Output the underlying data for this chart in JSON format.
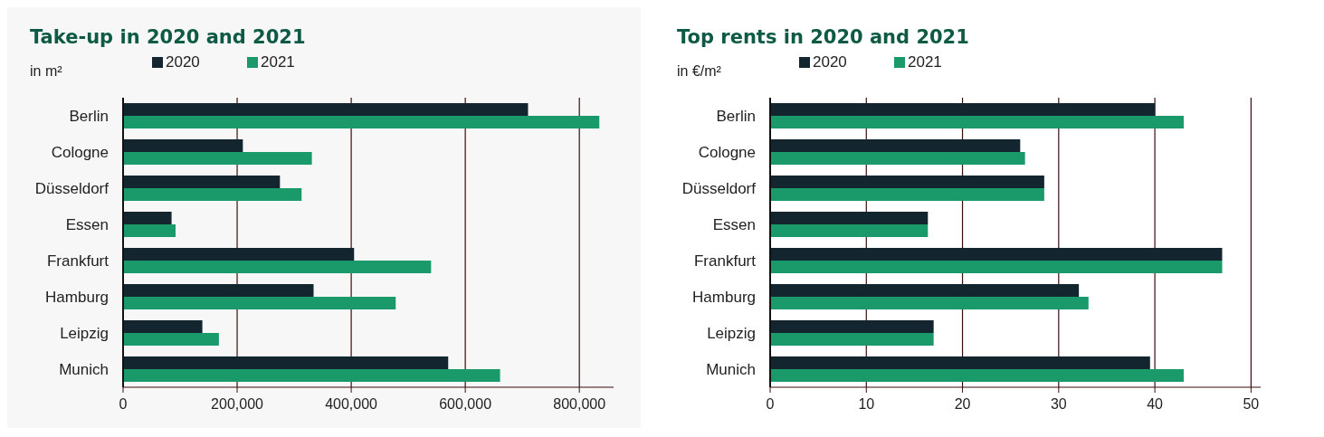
{
  "chart_data": [
    {
      "type": "bar",
      "orientation": "horizontal",
      "title": "Take-up in 2020 and 2021",
      "subtitle": "in m²",
      "categories": [
        "Berlin",
        "Cologne",
        "Düsseldorf",
        "Essen",
        "Frankfurt",
        "Hamburg",
        "Leipzig",
        "Munich"
      ],
      "series": [
        {
          "name": "2020",
          "color": "#13262f",
          "values": [
            710000,
            210000,
            275000,
            85000,
            405000,
            334000,
            139000,
            570000
          ]
        },
        {
          "name": "2021",
          "color": "#1a9a6a",
          "values": [
            835000,
            331000,
            313000,
            92000,
            540000,
            478000,
            168000,
            661000
          ]
        }
      ],
      "xlim": [
        0,
        860000
      ],
      "xticks": [
        0,
        {
          "value": 200000,
          "label": "200,000"
        },
        {
          "value": 400000,
          "label": "400,000"
        },
        {
          "value": 600000,
          "label": "600,000"
        },
        {
          "value": 800000,
          "label": "800,000"
        }
      ],
      "grid": "x",
      "legend": "top left"
    },
    {
      "type": "bar",
      "orientation": "horizontal",
      "title": "Top rents in 2020 and 2021",
      "subtitle": "in €/m²",
      "categories": [
        "Berlin",
        "Cologne",
        "Düsseldorf",
        "Essen",
        "Frankfurt",
        "Hamburg",
        "Leipzig",
        "Munich"
      ],
      "series": [
        {
          "name": "2020",
          "color": "#13262f",
          "values": [
            40,
            26,
            28.5,
            16.4,
            47,
            32.1,
            17,
            39.5
          ]
        },
        {
          "name": "2021",
          "color": "#1a9a6a",
          "values": [
            43,
            26.5,
            28.5,
            16.4,
            47,
            33.1,
            17,
            43
          ]
        }
      ],
      "xlim": [
        0,
        51
      ],
      "xticks": [
        0,
        10,
        20,
        30,
        40,
        50
      ],
      "grid": "x",
      "legend": "top left"
    }
  ]
}
